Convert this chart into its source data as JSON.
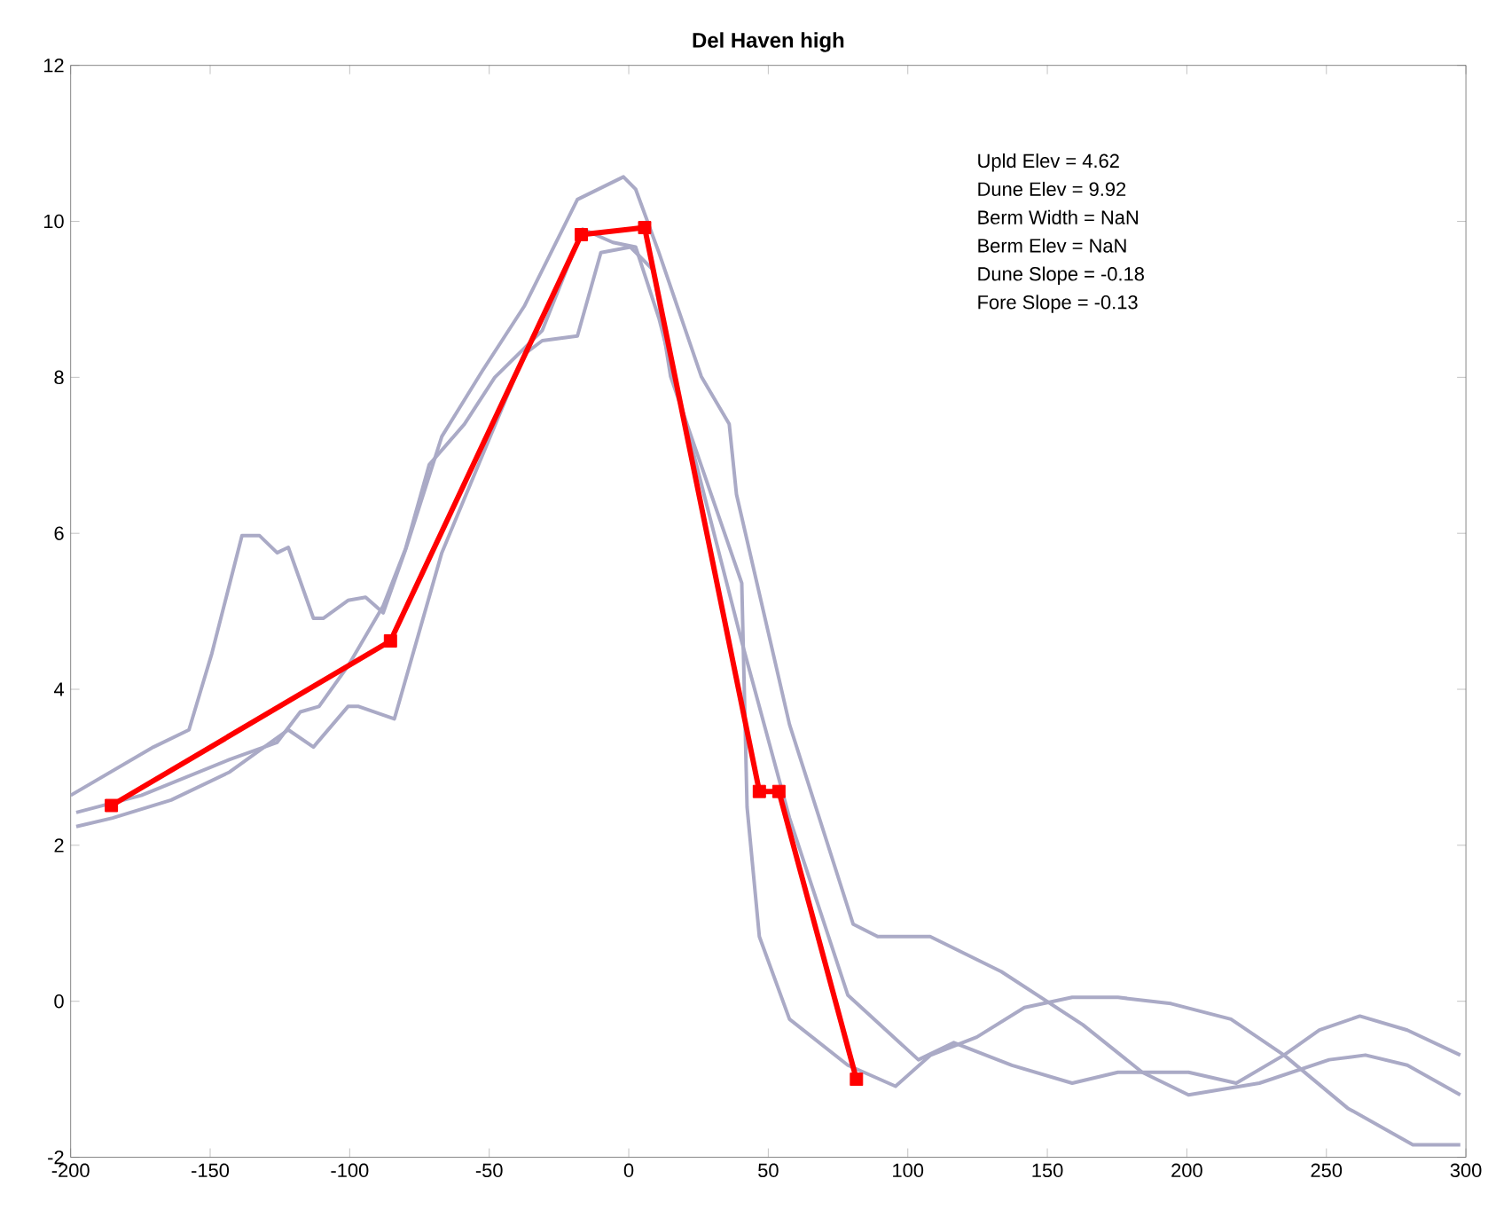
{
  "chart_data": {
    "type": "line",
    "title": "Del Haven high",
    "xlim": [
      -200,
      300
    ],
    "ylim": [
      -2,
      12
    ],
    "xticks": [
      -200,
      -150,
      -100,
      -50,
      0,
      50,
      100,
      150,
      200,
      250,
      300
    ],
    "yticks": [
      -2,
      0,
      2,
      4,
      6,
      8,
      10,
      12
    ],
    "grid": false,
    "annotations": [
      "Upld Elev  = 4.62",
      "Dune Elev  = 9.92",
      "Berm Width = NaN",
      "Berm Elev  = NaN",
      "Dune Slope = -0.18",
      "Fore Slope = -0.13"
    ],
    "series": [
      {
        "color": "#aaaac6",
        "marker": "none",
        "x": [
          -200,
          -170.3,
          -157.6,
          -149.4,
          -138.6,
          -132.3,
          -126,
          -122,
          -113,
          -109.5,
          -100.6,
          -94.3,
          -88,
          -79.7,
          -67,
          -52.5,
          -37.3,
          -18.4,
          -1.9,
          2.5,
          10.8,
          26,
          36,
          38.6,
          57.6,
          80.4,
          89.2,
          108,
          133.5,
          162.7,
          184,
          200.6,
          226,
          251,
          264,
          279,
          298
        ],
        "values": [
          2.64,
          3.26,
          3.48,
          4.46,
          5.97,
          5.97,
          5.75,
          5.82,
          4.91,
          4.91,
          5.14,
          5.18,
          4.98,
          5.82,
          7.24,
          8.08,
          8.92,
          10.28,
          10.57,
          10.41,
          9.6,
          8.01,
          7.4,
          6.5,
          3.55,
          0.99,
          0.83,
          0.83,
          0.38,
          -0.3,
          -0.91,
          -1.2,
          -1.05,
          -0.75,
          -0.69,
          -0.82,
          -1.2
        ]
      },
      {
        "color": "#aaaac6",
        "marker": "none",
        "x": [
          -198,
          -185,
          -164,
          -143,
          -122,
          -113,
          -100.6,
          -96.8,
          -84,
          -67,
          -37.3,
          -31,
          -18.4,
          -10,
          0.6,
          8.9,
          15,
          40.5,
          42.4,
          46.8,
          57.6,
          78.5,
          95.6,
          108.2,
          124.7,
          141.8,
          158.9,
          175.3,
          194.3,
          215.8,
          234.8,
          257.6,
          281,
          298
        ],
        "values": [
          2.24,
          2.35,
          2.58,
          2.94,
          3.48,
          3.26,
          3.78,
          3.78,
          3.62,
          5.75,
          8.3,
          8.47,
          8.53,
          9.6,
          9.67,
          9.37,
          8.01,
          5.36,
          2.49,
          0.83,
          -0.23,
          -0.82,
          -1.09,
          -0.69,
          -0.46,
          -0.08,
          0.05,
          0.05,
          -0.03,
          -0.23,
          -0.69,
          -1.37,
          -1.84,
          -1.84
        ]
      },
      {
        "color": "#aaaac6",
        "marker": "none",
        "x": [
          -198,
          -174.7,
          -143,
          -126,
          -117.7,
          -111,
          -100.6,
          -88,
          -80,
          -71.5,
          -58.9,
          -48,
          -31,
          -16.5,
          -5.7,
          2.5,
          10.8,
          40.5,
          57.6,
          78.5,
          103.8,
          116.5,
          137.3,
          158.9,
          175.3,
          200.6,
          217.7,
          234.8,
          247.5,
          262,
          279,
          298
        ],
        "values": [
          2.42,
          2.64,
          3.1,
          3.32,
          3.71,
          3.78,
          4.3,
          5.07,
          5.8,
          6.88,
          7.4,
          8.0,
          8.6,
          9.9,
          9.73,
          9.67,
          8.76,
          4.61,
          2.35,
          0.08,
          -0.75,
          -0.53,
          -0.82,
          -1.05,
          -0.91,
          -0.91,
          -1.05,
          -0.69,
          -0.37,
          -0.19,
          -0.37,
          -0.69
        ]
      },
      {
        "color": "#ff0000",
        "marker": "square",
        "x": [
          -185.4,
          -85.4,
          -17,
          5.7,
          46.8,
          53.8,
          81.6
        ],
        "values": [
          2.51,
          4.62,
          9.83,
          9.92,
          2.69,
          2.69,
          -1.0
        ]
      }
    ]
  }
}
